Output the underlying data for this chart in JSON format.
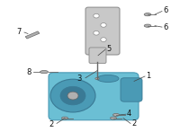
{
  "bg_color": "#ffffff",
  "part_color": "#6bbfd4",
  "part_color_dark": "#4a9ab5",
  "part_color_darker": "#3a7a95",
  "bracket_color": "#c8c8c8",
  "bracket_stroke": "#888888",
  "bolt_color": "#b0b0b0",
  "bolt_stroke": "#666666",
  "line_color": "#444444",
  "label_color": "#111111",
  "label_fontsize": 6.0
}
